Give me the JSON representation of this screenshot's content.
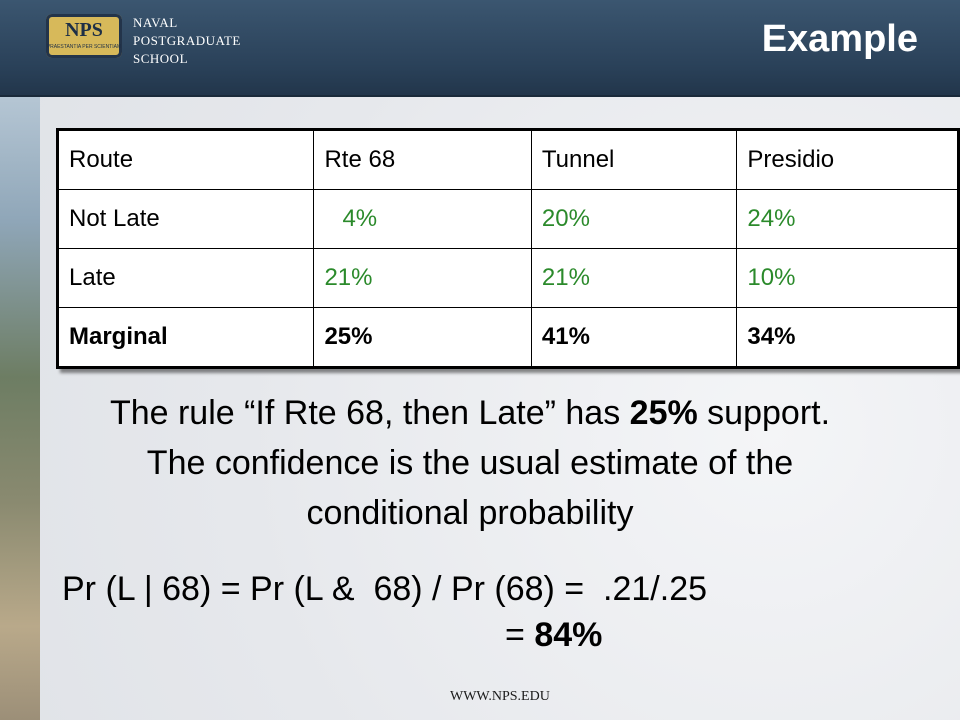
{
  "header": {
    "logo_badge": "NPS",
    "logo_motto": "PRAESTANTIA PER SCIENTIAM",
    "logo_lines": [
      "NAVAL",
      "POSTGRADUATE",
      "SCHOOL"
    ],
    "title": "Example"
  },
  "table": {
    "rows": [
      [
        "Route",
        "Rte 68",
        "Tunnel",
        "Presidio"
      ],
      [
        "Not Late",
        "4%",
        "20%",
        "24%"
      ],
      [
        "Late",
        "21%",
        "21%",
        "10%"
      ],
      [
        "Marginal",
        "25%",
        "41%",
        "34%"
      ]
    ]
  },
  "paragraph": {
    "parts": [
      "The rule “If Rte 68, then Late” has ",
      "25%",
      " support. The confidence is the usual estimate of the conditional probability"
    ]
  },
  "formula": {
    "line1": "Pr (L | 68) = Pr (L &  68) / Pr (68) =  .21/.25",
    "result_prefix": "=",
    "result": "84%"
  },
  "footer": {
    "url": "WWW.NPS.EDU"
  }
}
